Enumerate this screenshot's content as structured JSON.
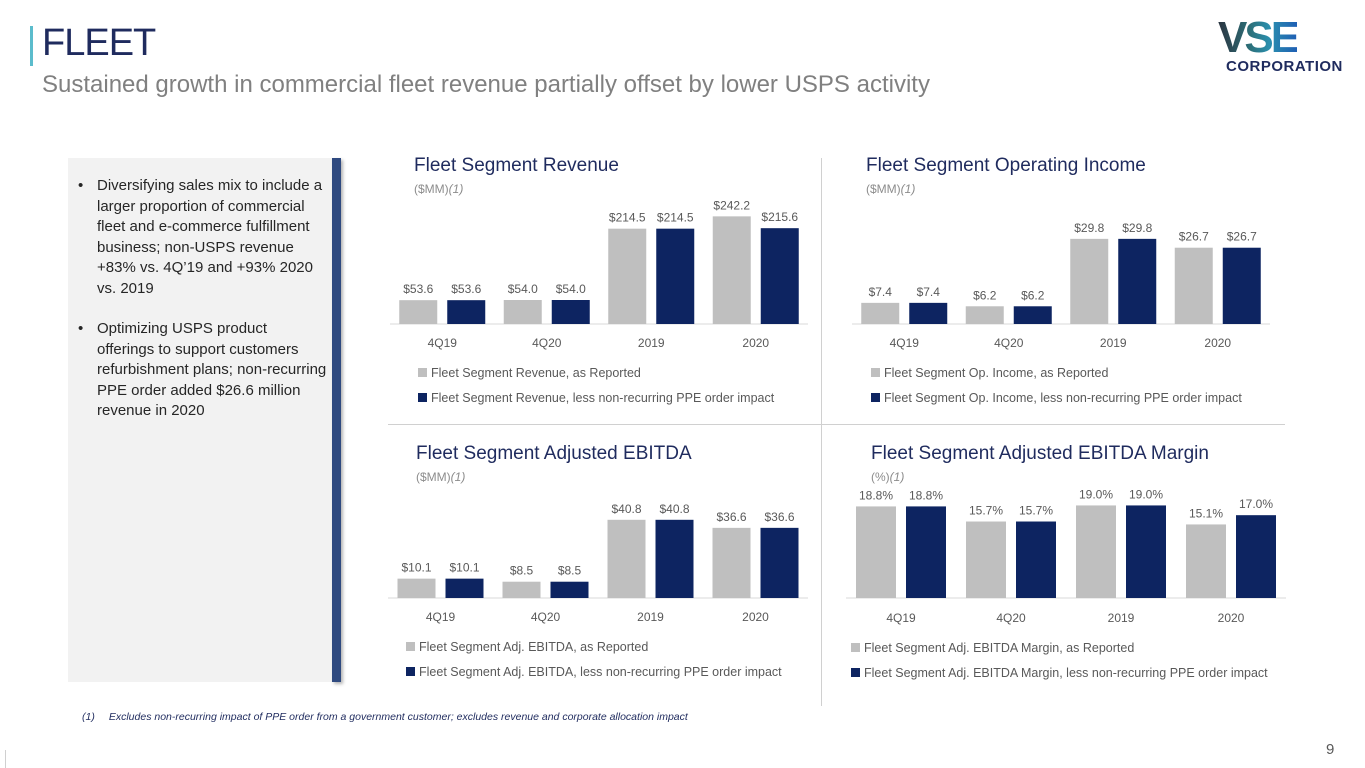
{
  "header": {
    "title": "FLEET",
    "subtitle": "Sustained growth in commercial fleet revenue partially offset by lower USPS activity"
  },
  "logo": {
    "primary": "VSE",
    "secondary": "CORPORATION"
  },
  "sidebar": {
    "bullets": [
      "Diversifying sales mix to include a larger proportion of commercial fleet and e-commerce fulfillment business; non-USPS revenue +83% vs. 4Q’19 and +93% 2020 vs. 2019",
      "Optimizing USPS product offerings to support customers refurbishment plans; non-recurring PPE order added $26.6 million revenue in 2020"
    ],
    "bullet_glyph": "•"
  },
  "colors": {
    "reported": "#bfbfbf",
    "adjusted": "#0d2461",
    "title": "#1f2b5e",
    "accent_bar": "#5bbccc"
  },
  "chart_data": [
    {
      "type": "bar",
      "title": "Fleet Segment Revenue",
      "unit": "($MM)",
      "unit_note": "(1)",
      "categories": [
        "4Q19",
        "4Q20",
        "2019",
        "2020"
      ],
      "series": [
        {
          "name": "Fleet Segment Revenue, as Reported",
          "values": [
            53.6,
            54.0,
            214.5,
            242.2
          ],
          "labels": [
            "$53.6",
            "$54.0",
            "$214.5",
            "$242.2"
          ]
        },
        {
          "name": "Fleet Segment Revenue, less non-recurring PPE order impact",
          "values": [
            53.6,
            54.0,
            214.5,
            215.6
          ],
          "labels": [
            "$53.6",
            "$54.0",
            "$214.5",
            "$215.6"
          ]
        }
      ],
      "ylim": [
        0,
        270
      ],
      "grid": false,
      "legend": "bottom"
    },
    {
      "type": "bar",
      "title": "Fleet Segment Operating Income",
      "unit": "($MM)",
      "unit_note": "(1)",
      "categories": [
        "4Q19",
        "4Q20",
        "2019",
        "2020"
      ],
      "series": [
        {
          "name": "Fleet Segment Op. Income, as Reported",
          "values": [
            7.4,
            6.2,
            29.8,
            26.7
          ],
          "labels": [
            "$7.4",
            "$6.2",
            "$29.8",
            "$26.7"
          ]
        },
        {
          "name": "Fleet Segment Op. Income, less non-recurring PPE order impact",
          "values": [
            7.4,
            6.2,
            29.8,
            26.7
          ],
          "labels": [
            "$7.4",
            "$6.2",
            "$29.8",
            "$26.7"
          ]
        }
      ],
      "ylim": [
        0,
        42
      ],
      "grid": false,
      "legend": "bottom"
    },
    {
      "type": "bar",
      "title": "Fleet Segment Adjusted EBITDA",
      "unit": "($MM)",
      "unit_note": "(1)",
      "categories": [
        "4Q19",
        "4Q20",
        "2019",
        "2020"
      ],
      "series": [
        {
          "name": "Fleet Segment Adj. EBITDA, as Reported",
          "values": [
            10.1,
            8.5,
            40.8,
            36.6
          ],
          "labels": [
            "$10.1",
            "$8.5",
            "$40.8",
            "$36.6"
          ]
        },
        {
          "name": "Fleet Segment Adj. EBITDA, less non-recurring PPE order impact",
          "values": [
            10.1,
            8.5,
            40.8,
            36.6
          ],
          "labels": [
            "$10.1",
            "$8.5",
            "$40.8",
            "$36.6"
          ]
        }
      ],
      "ylim": [
        0,
        60
      ],
      "grid": false,
      "legend": "bottom"
    },
    {
      "type": "bar",
      "title": "Fleet Segment Adjusted EBITDA Margin",
      "unit": "(%)",
      "unit_note": "(1)",
      "categories": [
        "4Q19",
        "4Q20",
        "2019",
        "2020"
      ],
      "series": [
        {
          "name": "Fleet Segment Adj. EBITDA Margin, as Reported",
          "values": [
            18.8,
            15.7,
            19.0,
            15.1
          ],
          "labels": [
            "18.8%",
            "15.7%",
            "19.0%",
            "15.1%"
          ]
        },
        {
          "name": "Fleet Segment Adj. EBITDA Margin, less non-recurring PPE order impact",
          "values": [
            18.8,
            15.7,
            19.0,
            17.0
          ],
          "labels": [
            "18.8%",
            "15.7%",
            "19.0%",
            "17.0%"
          ]
        }
      ],
      "ylim": [
        0,
        19.5
      ],
      "grid": false,
      "legend": "bottom"
    }
  ],
  "footnote": {
    "marker": "(1)",
    "text": "Excludes non-recurring impact of PPE order from a government customer; excludes revenue and corporate allocation impact"
  },
  "page_number": "9"
}
